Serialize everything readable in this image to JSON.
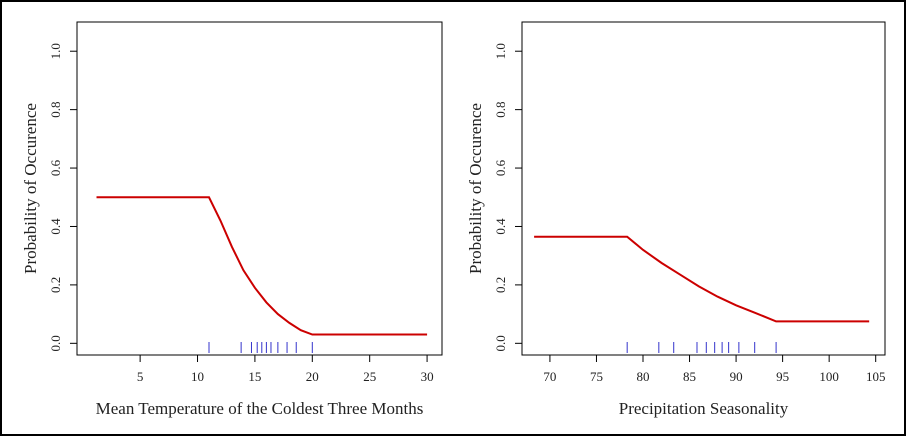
{
  "chart_data": [
    {
      "type": "line",
      "xlabel": "Mean Temperature of the Coldest Three Months",
      "ylabel": "Probability of Occurence",
      "x": [
        1.2,
        11,
        12,
        13,
        14,
        15,
        16,
        17,
        18,
        19,
        20,
        30
      ],
      "values": [
        0.5,
        0.5,
        0.42,
        0.33,
        0.25,
        0.19,
        0.14,
        0.1,
        0.07,
        0.045,
        0.03,
        0.03
      ],
      "color": "#cc0000",
      "rug": [
        11,
        13.8,
        14.7,
        15.2,
        15.6,
        16,
        16.4,
        17,
        17.8,
        18.6,
        20
      ],
      "rug_color": "#3333cc",
      "xlim": [
        -0.5,
        31.3
      ],
      "xticks": [
        5,
        10,
        15,
        20,
        25,
        30
      ],
      "ylim": [
        -0.04,
        1.1
      ],
      "yticks": [
        {
          "value": 0,
          "label": "0.0"
        },
        0.2,
        0.4,
        0.6,
        0.8,
        {
          "value": 1,
          "label": "1.0"
        }
      ]
    },
    {
      "type": "line",
      "xlabel": "Precipitation Seasonality",
      "ylabel": "Probability of Occurence",
      "x": [
        68.3,
        78.3,
        80,
        82,
        84,
        86,
        88,
        90,
        92,
        94.3,
        104.3
      ],
      "values": [
        0.365,
        0.365,
        0.32,
        0.275,
        0.235,
        0.195,
        0.16,
        0.13,
        0.105,
        0.075,
        0.075
      ],
      "color": "#cc0000",
      "rug": [
        78.3,
        81.7,
        83.3,
        85.8,
        86.8,
        87.7,
        88.5,
        89.2,
        90.3,
        92,
        94.3
      ],
      "rug_color": "#3333cc",
      "xlim": [
        67,
        106
      ],
      "xticks": [
        70,
        75,
        80,
        85,
        90,
        95,
        100,
        105
      ],
      "ylim": [
        -0.04,
        1.1
      ],
      "yticks": [
        {
          "value": 0,
          "label": "0.0"
        },
        0.2,
        0.4,
        0.6,
        0.8,
        {
          "value": 1,
          "label": "1.0"
        }
      ]
    }
  ]
}
